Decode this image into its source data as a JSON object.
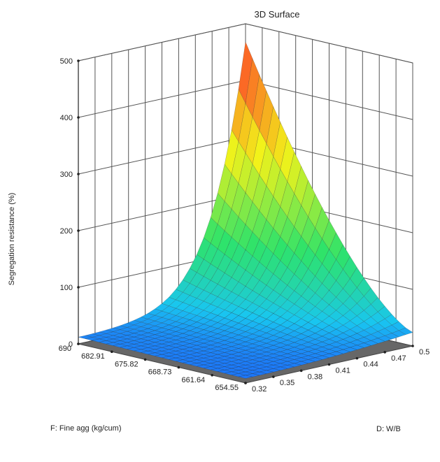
{
  "chart_data": {
    "type": "surface3d",
    "title": "3D Surface",
    "zlabel": "Segregation resistance (%)",
    "xlabel": "D: W/B",
    "ylabel": "F: Fine agg (kg/cum)",
    "zlim": [
      0,
      500
    ],
    "z_ticks": [
      0,
      100,
      200,
      300,
      400,
      500
    ],
    "xlim": [
      0.32,
      0.5
    ],
    "x_ticks": [
      0.32,
      0.35,
      0.38,
      0.41,
      0.44,
      0.47,
      0.5
    ],
    "x_tick_labels": [
      "0.32",
      "0.35",
      "0.38",
      "0.41",
      "0.44",
      "0.47",
      "0.5"
    ],
    "ylim": [
      654.55,
      690
    ],
    "y_ticks": [
      654.55,
      661.64,
      668.73,
      675.82,
      682.91,
      690
    ],
    "y_tick_labels": [
      "654.55",
      "661.64",
      "668.73",
      "675.82",
      "682.91",
      "690"
    ],
    "grid": true,
    "colormap": [
      "#1f3cff",
      "#19c6f0",
      "#2ee36a",
      "#f2f21a",
      "#ff2a2a"
    ],
    "floor_color": "#676767",
    "contour_color": "#d81818",
    "contour_low_color": "#e6a020",
    "surface_samples": [
      {
        "x": 0.32,
        "y": 654.55,
        "z": 8
      },
      {
        "x": 0.32,
        "y": 690,
        "z": 12
      },
      {
        "x": 0.41,
        "y": 672,
        "z": 45
      },
      {
        "x": 0.44,
        "y": 690,
        "z": 140
      },
      {
        "x": 0.5,
        "y": 654.55,
        "z": 120
      },
      {
        "x": 0.5,
        "y": 690,
        "z": 460
      }
    ]
  }
}
